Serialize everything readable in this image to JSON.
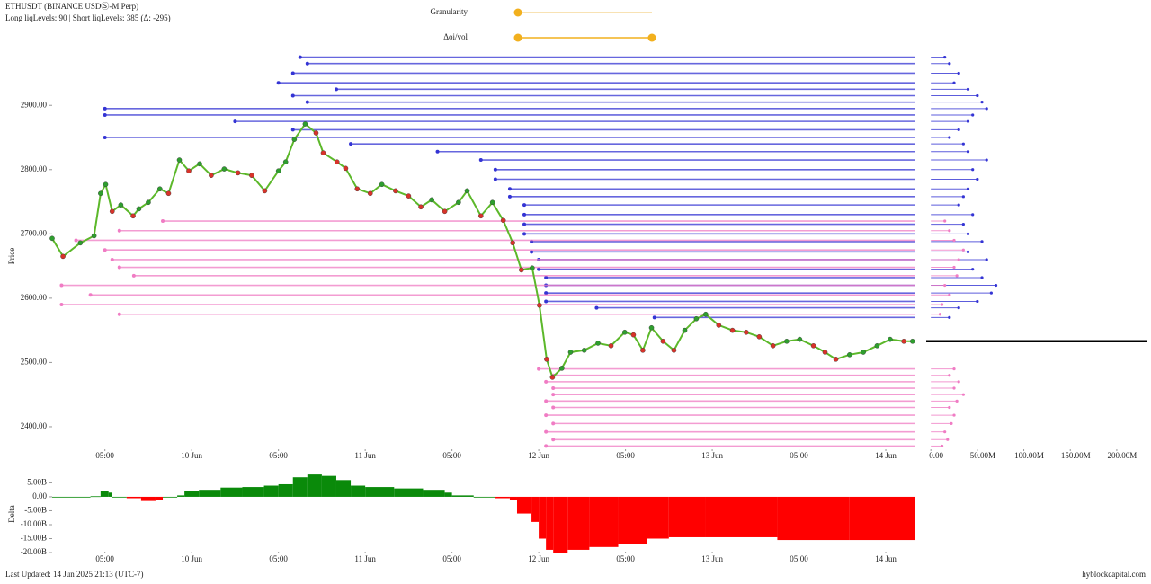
{
  "header": {
    "title": "ETHUSDT (BINANCE USDⓈ-M Perp)",
    "subtitle": "Long liqLevels: 90 | Short liqLevels: 385 (Δ: -295)"
  },
  "controls": {
    "granularity": "Granularity",
    "doi_vol": "Δoi/vol"
  },
  "chart_data": [
    {
      "type": "line",
      "y_label": "Price",
      "color": "#5cb82a",
      "x": [
        4.7,
        6.2,
        8.6,
        10.5,
        11.4,
        12.1,
        13.0,
        14.2,
        15.9,
        16.7,
        18.0,
        19.6,
        20.8,
        22.3,
        23.6,
        25.1,
        26.7,
        28.5,
        30.4,
        32.3,
        34.1,
        36.0,
        37.0,
        38.2,
        39.7,
        41.2,
        42.2,
        44.1,
        45.3,
        46.9,
        48.7,
        50.3,
        52.2,
        54.0,
        55.7,
        57.2,
        59.0,
        60.9,
        62.1,
        64.0,
        65.6,
        67.1,
        68.4,
        69.6,
        71.1,
        72.1,
        73.1,
        73.9,
        75.2,
        76.4,
        78.3,
        80.2,
        82.0,
        83.9,
        85.1,
        86.4,
        87.6,
        89.2,
        90.7,
        92.2,
        93.8,
        95.1,
        96.9,
        98.8,
        100.7,
        102.5,
        104.4,
        106.3,
        108.1,
        110.0,
        111.6,
        113.1,
        115.0,
        116.9,
        118.8,
        120.6,
        122.5,
        123.7
      ],
      "values": [
        2693,
        2665,
        2686,
        2697,
        2763,
        2777,
        2735,
        2745,
        2728,
        2739,
        2749,
        2770,
        2763,
        2815,
        2798,
        2809,
        2791,
        2801,
        2795,
        2791,
        2767,
        2798,
        2812,
        2847,
        2871,
        2857,
        2826,
        2812,
        2802,
        2770,
        2763,
        2777,
        2767,
        2759,
        2742,
        2753,
        2735,
        2749,
        2767,
        2728,
        2749,
        2721,
        2686,
        2644,
        2647,
        2589,
        2505,
        2477,
        2491,
        2516,
        2519,
        2530,
        2526,
        2547,
        2543,
        2519,
        2554,
        2533,
        2519,
        2550,
        2568,
        2575,
        2558,
        2550,
        2547,
        2540,
        2526,
        2533,
        2536,
        2526,
        2516,
        2505,
        2512,
        2516,
        2526,
        2536,
        2533,
        2533
      ],
      "xlim": [
        4.7,
        124.1
      ],
      "ylim": [
        2365,
        2980
      ],
      "xticks": [
        {
          "value": 12,
          "label": "05:00"
        },
        {
          "value": 24,
          "label": "10 Jun"
        },
        {
          "value": 36,
          "label": "05:00"
        },
        {
          "value": 48,
          "label": "11 Jun"
        },
        {
          "value": 60,
          "label": "05:00"
        },
        {
          "value": 72,
          "label": "12 Jun"
        },
        {
          "value": 84,
          "label": "05:00"
        },
        {
          "value": 96,
          "label": "13 Jun"
        },
        {
          "value": 108,
          "label": "05:00"
        },
        {
          "value": 120,
          "label": "14 Jun"
        }
      ],
      "yticks": [
        {
          "value": 2400,
          "label": "2400.00"
        },
        {
          "value": 2500,
          "label": "2500.00"
        },
        {
          "value": 2600,
          "label": "2600.00"
        },
        {
          "value": 2700,
          "label": "2700.00"
        },
        {
          "value": 2800,
          "label": "2800.00"
        },
        {
          "value": 2900,
          "label": "2900.00"
        }
      ],
      "x2lim": [
        -5,
        232
      ],
      "x2ticks": [
        {
          "value": 0,
          "label": "0.00"
        },
        {
          "value": 50,
          "label": "50.00M"
        },
        {
          "value": 100,
          "label": "100.00M"
        },
        {
          "value": 150,
          "label": "150.00M"
        },
        {
          "value": 200,
          "label": "200.00M"
        }
      ]
    },
    {
      "type": "levels",
      "color": "#3434d4",
      "y": [
        2975,
        2965,
        2950,
        2935,
        2925,
        2915,
        2905,
        2895,
        2885,
        2875,
        2862,
        2850,
        2840,
        2828,
        2815,
        2800,
        2785,
        2770,
        2758,
        2745,
        2730,
        2715,
        2700,
        2688,
        2672,
        2660,
        2645,
        2632,
        2620,
        2608,
        2595,
        2585,
        2570
      ],
      "x": [
        39,
        40,
        38,
        36,
        44,
        38,
        40,
        12,
        12,
        30,
        38,
        12,
        46,
        58,
        64,
        66,
        66,
        68,
        68,
        70,
        70,
        70,
        70,
        71,
        71,
        72,
        72,
        73,
        73,
        73,
        73,
        80,
        88
      ],
      "values": [
        15,
        20,
        30,
        25,
        40,
        50,
        55,
        60,
        45,
        40,
        30,
        20,
        35,
        40,
        60,
        45,
        50,
        40,
        35,
        30,
        45,
        35,
        40,
        55,
        40,
        60,
        45,
        55,
        70,
        65,
        50,
        30,
        20
      ]
    },
    {
      "type": "levels",
      "color": "#f07cc4",
      "y": [
        2720,
        2705,
        2690,
        2675,
        2660,
        2648,
        2635,
        2620,
        2605,
        2590,
        2575,
        2490,
        2480,
        2470,
        2460,
        2450,
        2440,
        2430,
        2418,
        2405,
        2392,
        2380,
        2370
      ],
      "x": [
        20,
        14,
        8,
        12,
        13,
        14,
        16,
        6,
        10,
        6,
        14,
        72,
        74,
        73,
        74,
        74,
        73,
        74,
        73,
        74,
        73,
        74,
        73
      ],
      "values": [
        15,
        20,
        25,
        35,
        30,
        25,
        28,
        15,
        20,
        12,
        10,
        25,
        20,
        30,
        25,
        35,
        28,
        20,
        25,
        22,
        15,
        18,
        12
      ]
    },
    {
      "type": "area",
      "y_label": "Delta",
      "pos_color": "#0a8a0a",
      "neg_color": "#ff0000",
      "x": [
        4.7,
        10,
        11.4,
        12.5,
        13,
        15,
        17,
        19,
        20,
        22,
        23,
        25,
        28,
        31,
        34,
        36,
        38,
        40,
        42,
        44,
        46,
        48,
        52,
        56,
        59,
        60,
        63,
        66,
        68,
        69,
        71,
        72,
        73,
        74,
        76,
        79,
        83,
        87,
        90,
        95,
        105,
        115
      ],
      "values": [
        0,
        0.2,
        2,
        1.5,
        0,
        -0.5,
        -1.5,
        -1,
        0,
        0.5,
        2,
        2.5,
        3.3,
        3.5,
        4,
        4.5,
        7,
        8,
        7.5,
        6,
        4,
        3.5,
        3,
        2.5,
        1.5,
        0.5,
        0,
        -0.5,
        -1,
        -6,
        -9,
        -15,
        -19,
        -20,
        -19,
        -18,
        -17,
        -15,
        -14.5,
        -14.5,
        -15.5,
        -15.5
      ],
      "ylim": [
        -21.6,
        9
      ],
      "yticks": [
        {
          "value": 5,
          "label": "5.00B"
        },
        {
          "value": 0,
          "label": "0.00"
        },
        {
          "value": -5,
          "label": "-5.00B"
        },
        {
          "value": -10,
          "label": "-10.00B"
        },
        {
          "value": -15,
          "label": "-15.00B"
        },
        {
          "value": -20,
          "label": "-20.00B"
        }
      ]
    }
  ],
  "footer": {
    "updated": "Last Updated: 14 Jun 2025 21:13 (UTC-7)",
    "brand": "hyblockcapital.com"
  }
}
